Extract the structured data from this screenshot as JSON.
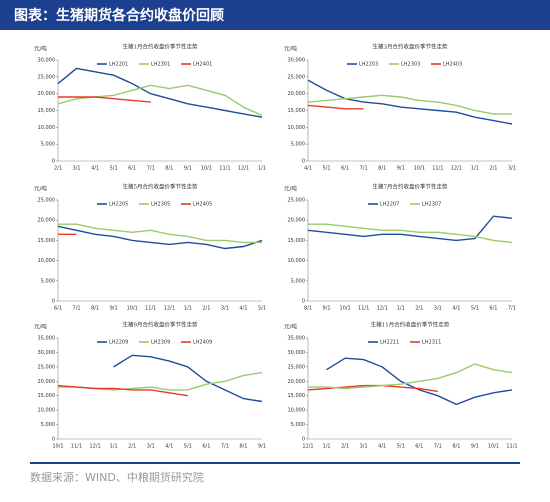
{
  "header": {
    "title": "图表：生猪期货各合约收盘价回顾"
  },
  "source": "数据来源：WIND、中粮期货研究院",
  "chart_data": [
    {
      "type": "line",
      "title": "生猪1月合约收盘价季节性走势",
      "y_label": "元/吨",
      "categories": [
        "2/1",
        "3/1",
        "4/1",
        "5/1",
        "6/1",
        "7/1",
        "8/1",
        "9/1",
        "10/1",
        "11/1",
        "12/1",
        "1/1"
      ],
      "ylim": [
        0,
        30000
      ],
      "yticks": [
        0,
        {
          "value": 5000,
          "label": "5,000"
        },
        {
          "value": 10000,
          "label": "10,000"
        },
        {
          "value": 15000,
          "label": "15,000"
        },
        {
          "value": 20000,
          "label": "20,000"
        },
        {
          "value": 25000,
          "label": "25,000"
        },
        {
          "value": 30000,
          "label": "30,000"
        }
      ],
      "series": [
        {
          "name": "LH2201",
          "color": "#1f4e9c",
          "values": [
            23000,
            27500,
            26500,
            25500,
            23000,
            20000,
            18500,
            17000,
            16000,
            15000,
            14000,
            13000
          ]
        },
        {
          "name": "LH2301",
          "color": "#9cc96b",
          "values": [
            17000,
            18500,
            19000,
            19500,
            21000,
            22500,
            21500,
            22500,
            21000,
            19500,
            16000,
            13500
          ]
        },
        {
          "name": "LH2401",
          "color": "#e8392f",
          "values": [
            19000,
            19000,
            19000,
            18500,
            18000,
            17500,
            null,
            null,
            null,
            null,
            null,
            null
          ]
        }
      ]
    },
    {
      "type": "line",
      "title": "生猪3月合约收盘价季节性走势",
      "y_label": "元/吨",
      "categories": [
        "4/1",
        "5/1",
        "6/1",
        "7/1",
        "8/1",
        "9/1",
        "10/1",
        "11/1",
        "12/1",
        "1/1",
        "2/1",
        "3/1"
      ],
      "ylim": [
        0,
        30000
      ],
      "yticks": [
        0,
        {
          "value": 5000,
          "label": "5,000"
        },
        {
          "value": 10000,
          "label": "10,000"
        },
        {
          "value": 15000,
          "label": "15,000"
        },
        {
          "value": 20000,
          "label": "20,000"
        },
        {
          "value": 25000,
          "label": "25,000"
        },
        {
          "value": 30000,
          "label": "30,000"
        }
      ],
      "series": [
        {
          "name": "LH2203",
          "color": "#1f4e9c",
          "values": [
            24000,
            21000,
            18500,
            17500,
            17000,
            16000,
            15500,
            15000,
            14500,
            13000,
            12000,
            11000
          ]
        },
        {
          "name": "LH2303",
          "color": "#9cc96b",
          "values": [
            17500,
            18000,
            18500,
            19000,
            19500,
            19000,
            18000,
            17500,
            16500,
            15000,
            14000,
            14000
          ]
        },
        {
          "name": "LH2403",
          "color": "#e8392f",
          "values": [
            16500,
            16000,
            15500,
            15500,
            null,
            null,
            null,
            null,
            null,
            null,
            null,
            null
          ]
        }
      ]
    },
    {
      "type": "line",
      "title": "生猪5月合约收盘价季节性走势",
      "y_label": "元/吨",
      "categories": [
        "6/1",
        "7/1",
        "8/1",
        "9/1",
        "10/1",
        "11/1",
        "12/1",
        "1/1",
        "2/1",
        "3/1",
        "4/1",
        "5/1"
      ],
      "ylim": [
        0,
        25000
      ],
      "yticks": [
        0,
        {
          "value": 5000,
          "label": "5,000"
        },
        {
          "value": 10000,
          "label": "10,000"
        },
        {
          "value": 15000,
          "label": "15,000"
        },
        {
          "value": 20000,
          "label": "20,000"
        },
        {
          "value": 25000,
          "label": "25,000"
        }
      ],
      "series": [
        {
          "name": "LH2205",
          "color": "#1f4e9c",
          "values": [
            18500,
            17500,
            16500,
            16000,
            15000,
            14500,
            14000,
            14500,
            14000,
            13000,
            13500,
            15000
          ]
        },
        {
          "name": "LH2305",
          "color": "#9cc96b",
          "values": [
            19000,
            19000,
            18000,
            17500,
            17000,
            17500,
            16500,
            16000,
            15000,
            15000,
            14500,
            14500
          ]
        },
        {
          "name": "LH2405",
          "color": "#e8392f",
          "values": [
            16500,
            16500,
            null,
            null,
            null,
            null,
            null,
            null,
            null,
            null,
            null,
            null
          ]
        }
      ]
    },
    {
      "type": "line",
      "title": "生猪7月合约收盘价季节性走势",
      "y_label": "元/吨",
      "categories": [
        "8/1",
        "9/1",
        "10/1",
        "11/1",
        "12/1",
        "1/1",
        "2/1",
        "3/1",
        "4/1",
        "5/1",
        "6/1",
        "7/1"
      ],
      "ylim": [
        0,
        25000
      ],
      "yticks": [
        0,
        {
          "value": 5000,
          "label": "5,000"
        },
        {
          "value": 10000,
          "label": "10,000"
        },
        {
          "value": 15000,
          "label": "15,000"
        },
        {
          "value": 20000,
          "label": "20,000"
        },
        {
          "value": 25000,
          "label": "25,000"
        }
      ],
      "series": [
        {
          "name": "LH2207",
          "color": "#1f4e9c",
          "values": [
            17500,
            17000,
            16500,
            16000,
            16500,
            16500,
            16000,
            15500,
            15000,
            15500,
            21000,
            20500
          ]
        },
        {
          "name": "LH2307",
          "color": "#9cc96b",
          "values": [
            19000,
            19000,
            18500,
            18000,
            17500,
            17500,
            17000,
            17000,
            16500,
            16000,
            15000,
            14500
          ]
        }
      ]
    },
    {
      "type": "line",
      "title": "生猪9月合约收盘价季节性走势",
      "y_label": "元/吨",
      "categories": [
        "10/1",
        "11/1",
        "12/1",
        "1/1",
        "2/1",
        "3/1",
        "4/1",
        "5/1",
        "6/1",
        "7/1",
        "8/1",
        "9/1"
      ],
      "ylim": [
        0,
        35000
      ],
      "yticks": [
        0,
        {
          "value": 5000,
          "label": "5,000"
        },
        {
          "value": 10000,
          "label": "10,000"
        },
        {
          "value": 15000,
          "label": "15,000"
        },
        {
          "value": 20000,
          "label": "20,000"
        },
        {
          "value": 25000,
          "label": "25,000"
        },
        {
          "value": 30000,
          "label": "30,000"
        },
        {
          "value": 35000,
          "label": "35,000"
        }
      ],
      "series": [
        {
          "name": "LH2209",
          "color": "#1f4e9c",
          "values": [
            null,
            null,
            null,
            25000,
            29000,
            28500,
            27000,
            25000,
            20000,
            17000,
            14000,
            13000
          ]
        },
        {
          "name": "LH2309",
          "color": "#9cc96b",
          "values": [
            18000,
            18000,
            17500,
            17000,
            17500,
            18000,
            17000,
            17000,
            19000,
            20000,
            22000,
            23000
          ]
        },
        {
          "name": "LH2409",
          "color": "#e8392f",
          "values": [
            18500,
            18000,
            17500,
            17500,
            17000,
            17000,
            16000,
            15000,
            null,
            null,
            null,
            null
          ]
        }
      ]
    },
    {
      "type": "line",
      "title": "生猪11月合约收盘价季节性走势",
      "y_label": "元/吨",
      "categories": [
        "12/1",
        "1/1",
        "2/1",
        "3/1",
        "4/1",
        "5/1",
        "6/1",
        "7/1",
        "8/1",
        "9/1",
        "10/1",
        "11/1"
      ],
      "ylim": [
        0,
        35000
      ],
      "yticks": [
        0,
        {
          "value": 5000,
          "label": "5,000"
        },
        {
          "value": 10000,
          "label": "10,000"
        },
        {
          "value": 15000,
          "label": "15,000"
        },
        {
          "value": 20000,
          "label": "20,000"
        },
        {
          "value": 25000,
          "label": "25,000"
        },
        {
          "value": 30000,
          "label": "30,000"
        },
        {
          "value": 35000,
          "label": "35,000"
        }
      ],
      "series": [
        {
          "name": "LH2211",
          "color": "#1f4e9c",
          "values": [
            null,
            24000,
            28000,
            27500,
            25000,
            20000,
            17000,
            15000,
            12000,
            14500,
            16000,
            17000
          ]
        },
        {
          "name": "LH2311",
          "color": "#e8392f",
          "values": [
            17000,
            17500,
            18000,
            18500,
            18500,
            18000,
            17500,
            16500,
            null,
            null,
            null,
            null
          ]
        },
        {
          "color": "#9cc96b",
          "values": [
            18000,
            18000,
            17500,
            18000,
            18500,
            19000,
            20000,
            21000,
            23000,
            26000,
            24000,
            23000
          ]
        }
      ]
    }
  ]
}
